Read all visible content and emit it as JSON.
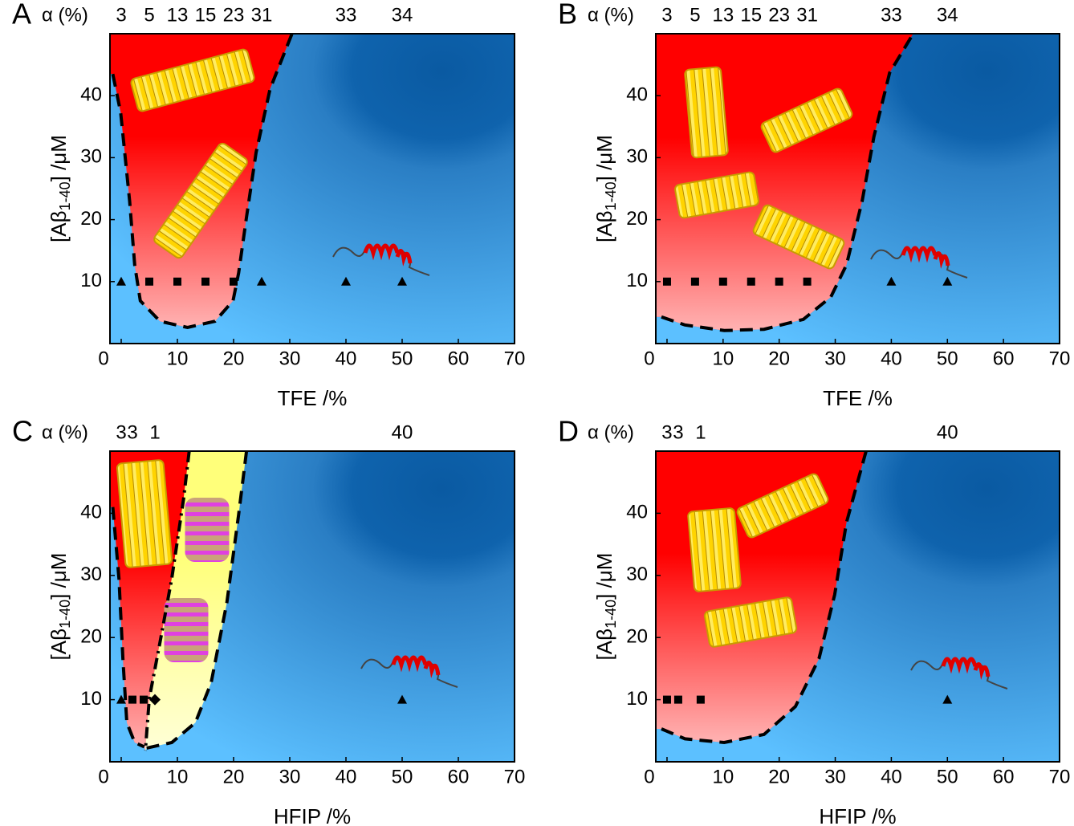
{
  "chart_data": [
    {
      "type": "scatter",
      "panel": "A",
      "alpha_label": "α (%)",
      "x_label": "TFE /%",
      "y_label": [
        "[Aβ",
        "1-40",
        "] /μM"
      ],
      "xlim": [
        -2,
        70
      ],
      "ylim": [
        0,
        50
      ],
      "xticks": [
        0,
        10,
        20,
        30,
        40,
        50,
        60,
        70
      ],
      "yticks": [
        10,
        20,
        30,
        40
      ],
      "color": "#000000",
      "points": {
        "x": [
          0,
          5,
          10,
          15,
          20,
          25,
          40,
          50
        ],
        "y": [
          10,
          10,
          10,
          10,
          10,
          10,
          10,
          10
        ],
        "shape": [
          "triangle",
          "square",
          "square",
          "square",
          "square",
          "triangle",
          "triangle",
          "triangle"
        ],
        "alpha": [
          3,
          5,
          13,
          15,
          23,
          31,
          33,
          34
        ]
      },
      "boundaries": [
        {
          "dash": "dash",
          "x": [
            -1.5,
            -0.1,
            1.5,
            2.4,
            3.4,
            6.9,
            11.8,
            16.7,
            19.9,
            20.9,
            22.3,
            24,
            26.5,
            30.4
          ],
          "y": [
            43.5,
            37.3,
            23,
            12.7,
            6.9,
            3.6,
            2.6,
            3.6,
            6.9,
            11.4,
            20.4,
            30.8,
            41.1,
            50
          ]
        }
      ],
      "regions": [
        {
          "color": "#ff0000",
          "edges": [
            0
          ],
          "corner": true
        }
      ]
    },
    {
      "type": "scatter",
      "panel": "B",
      "alpha_label": "α (%)",
      "x_label": "TFE /%",
      "y_label": [
        "[Aβ",
        "1-40",
        "] /μM"
      ],
      "xlim": [
        -2,
        70
      ],
      "ylim": [
        0,
        50
      ],
      "xticks": [
        0,
        10,
        20,
        30,
        40,
        50,
        60,
        70
      ],
      "yticks": [
        10,
        20,
        30,
        40
      ],
      "color": "#000000",
      "points": {
        "x": [
          0,
          5,
          10,
          15,
          20,
          25,
          40,
          50
        ],
        "y": [
          10,
          10,
          10,
          10,
          10,
          10,
          10,
          10
        ],
        "shape": [
          "square",
          "square",
          "square",
          "square",
          "square",
          "square",
          "triangle",
          "triangle"
        ],
        "alpha": [
          3,
          5,
          13,
          15,
          23,
          31,
          33,
          34
        ]
      },
      "boundaries": [
        {
          "dash": "dash",
          "x": [
            -1,
            3.2,
            10.2,
            17.3,
            24.3,
            29.2,
            32,
            34.8,
            36.9,
            39.7,
            43.9
          ],
          "y": [
            4.3,
            3,
            2.1,
            2.3,
            3.9,
            7.5,
            12.7,
            23,
            33.4,
            43.7,
            50
          ]
        }
      ],
      "regions": [
        {
          "color": "#ff0000",
          "edges": [
            0
          ],
          "corner": true
        }
      ]
    },
    {
      "type": "scatter",
      "panel": "C",
      "alpha_label": "α (%)",
      "x_label": "HFIP /%",
      "y_label": [
        "[Aβ",
        "1-40",
        "] /μM"
      ],
      "xlim": [
        -2,
        70
      ],
      "ylim": [
        0,
        50
      ],
      "xticks": [
        0,
        10,
        20,
        30,
        40,
        50,
        60,
        70
      ],
      "yticks": [
        10,
        20,
        30,
        40
      ],
      "color": "#000000",
      "points": {
        "x": [
          0,
          2,
          4,
          6,
          50
        ],
        "y": [
          10,
          10,
          10,
          10,
          10
        ],
        "shape": [
          "triangle",
          "square",
          "square",
          "diamond",
          "triangle"
        ],
        "alpha": [
          3,
          3,
          null,
          1,
          40
        ]
      },
      "boundaries": [
        {
          "dash": "dash",
          "x": [
            -1.5,
            -0.4,
            0.3,
            1,
            2.4,
            4.1
          ],
          "y": [
            41,
            29.5,
            16.6,
            6.3,
            3.1,
            2.4
          ]
        },
        {
          "dash": "dashdot",
          "x": [
            12.1,
            11.1,
            9,
            6.9,
            5,
            4.3
          ],
          "y": [
            50,
            42.3,
            29.5,
            19.2,
            10.2,
            1.8
          ]
        },
        {
          "dash": "dash",
          "x": [
            22.3,
            20.9,
            18.8,
            16,
            13.2,
            9,
            4.5
          ],
          "y": [
            50,
            39.8,
            25.6,
            12.7,
            6.3,
            3.1,
            2.2
          ]
        }
      ],
      "regions": [
        {
          "color": "#ff0000",
          "edges": [
            0,
            1
          ],
          "corner": true
        },
        {
          "color": "#ffff7a",
          "edges": [
            1,
            2
          ],
          "corner": false
        }
      ]
    },
    {
      "type": "scatter",
      "panel": "D",
      "alpha_label": "α (%)",
      "x_label": "HFIP /%",
      "y_label": [
        "[Aβ",
        "1-40",
        "] /μM"
      ],
      "xlim": [
        -2,
        70
      ],
      "ylim": [
        0,
        50
      ],
      "xticks": [
        0,
        10,
        20,
        30,
        40,
        50,
        60,
        70
      ],
      "yticks": [
        10,
        20,
        30,
        40
      ],
      "color": "#000000",
      "points": {
        "x": [
          0,
          2,
          6,
          50
        ],
        "y": [
          10,
          10,
          10,
          10
        ],
        "shape": [
          "square",
          "square",
          "square",
          "triangle"
        ],
        "alpha": [
          3,
          3,
          1,
          40
        ]
      },
      "boundaries": [
        {
          "dash": "dash",
          "x": [
            -1,
            3.2,
            10.2,
            17.3,
            22.9,
            27.1,
            29.9,
            32,
            35.5
          ],
          "y": [
            5.3,
            3.7,
            3.1,
            4.4,
            8.9,
            16.6,
            26.9,
            38.5,
            50
          ]
        }
      ],
      "regions": [
        {
          "color": "#ff0000",
          "edges": [
            0
          ],
          "corner": true
        }
      ]
    }
  ]
}
